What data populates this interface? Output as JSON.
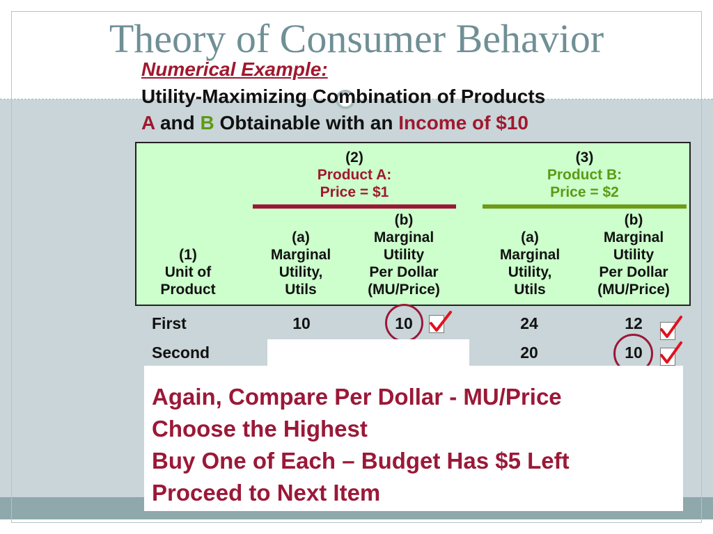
{
  "slide": {
    "title": "Theory of Consumer Behavior",
    "subtitle": "Numerical Example:",
    "heading": {
      "line1": "Utility-Maximizing Combination of Products",
      "line2_a": "A",
      "line2_and": "and",
      "line2_b": "B",
      "line2_mid": "Obtainable with an",
      "line2_income": "Income of $10"
    }
  },
  "table": {
    "product_a": {
      "num": "(2)",
      "name": "Product A:",
      "price": "Price = $1"
    },
    "product_b": {
      "num": "(3)",
      "name": "Product B:",
      "price": "Price = $2"
    },
    "col_unit": {
      "l1": "(1)",
      "l2": "Unit of",
      "l3": "Product"
    },
    "col_a_mu": {
      "l1": "(a)",
      "l2": "Marginal",
      "l3": "Utility,",
      "l4": "Utils"
    },
    "col_a_mupd": {
      "l1": "(b)",
      "l2": "Marginal",
      "l3": "Utility",
      "l4": "Per Dollar",
      "l5": "(MU/Price)"
    },
    "col_b_mu": {
      "l1": "(a)",
      "l2": "Marginal",
      "l3": "Utility,",
      "l4": "Utils"
    },
    "col_b_mupd": {
      "l1": "(b)",
      "l2": "Marginal",
      "l3": "Utility",
      "l4": "Per Dollar",
      "l5": "(MU/Price)"
    },
    "rows": [
      {
        "unit": "First",
        "a_mu": "10",
        "a_mupd": "10",
        "b_mu": "24",
        "b_mupd": "12"
      },
      {
        "unit": "Second",
        "a_mu": "",
        "a_mupd": "",
        "b_mu": "20",
        "b_mupd": "10"
      }
    ]
  },
  "callout": {
    "line1": "Again, Compare Per Dollar - MU/Price",
    "line2": "Choose the Highest",
    "line3": "Buy One of Each – Budget Has $5 Left",
    "line4": "Proceed to Next Item"
  },
  "colors": {
    "accent_red": "#a0182f",
    "accent_green": "#5d9a15",
    "title_gray": "#6f8f95",
    "header_fill": "#ccffcc"
  }
}
